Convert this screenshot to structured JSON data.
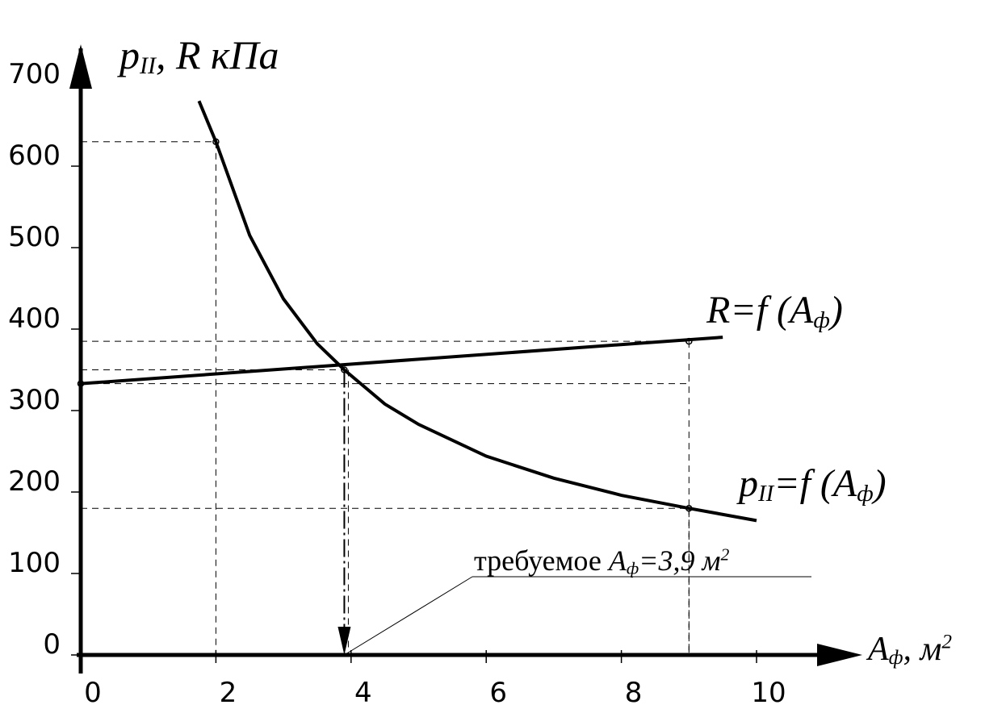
{
  "chart_data": {
    "type": "line",
    "y_label": [
      "p",
      "II",
      ", R кПа"
    ],
    "x_label": [
      "A",
      "ф",
      ", м",
      "2"
    ],
    "xlim": [
      0,
      11.5
    ],
    "ylim": [
      0,
      745
    ],
    "xticks": [
      0,
      2,
      4,
      6,
      8,
      10
    ],
    "yticks": [
      0,
      100,
      200,
      300,
      400,
      500,
      600,
      700
    ],
    "series": [
      {
        "name": [
          "R=f (A",
          "ф",
          ")"
        ],
        "color": "#000000",
        "x": [
          0,
          9.5
        ],
        "values": [
          333,
          390
        ]
      },
      {
        "name": [
          "p",
          "II",
          "=f (A",
          "ф",
          ")"
        ],
        "color": "#000000",
        "x": [
          1.75,
          2,
          2.5,
          3,
          3.5,
          3.9,
          4.5,
          5,
          6,
          7,
          8,
          9,
          10
        ],
        "values": [
          680,
          630,
          515,
          437,
          382,
          350,
          308,
          283,
          244,
          217,
          196,
          180,
          165
        ]
      }
    ],
    "guides": {
      "x": [
        0,
        2,
        3.9,
        9,
        9
      ],
      "values": [
        333,
        630,
        350,
        385,
        180
      ]
    },
    "annotation": [
      "требуемое ",
      "A",
      "ф",
      "=3,9 м",
      "2"
    ]
  }
}
